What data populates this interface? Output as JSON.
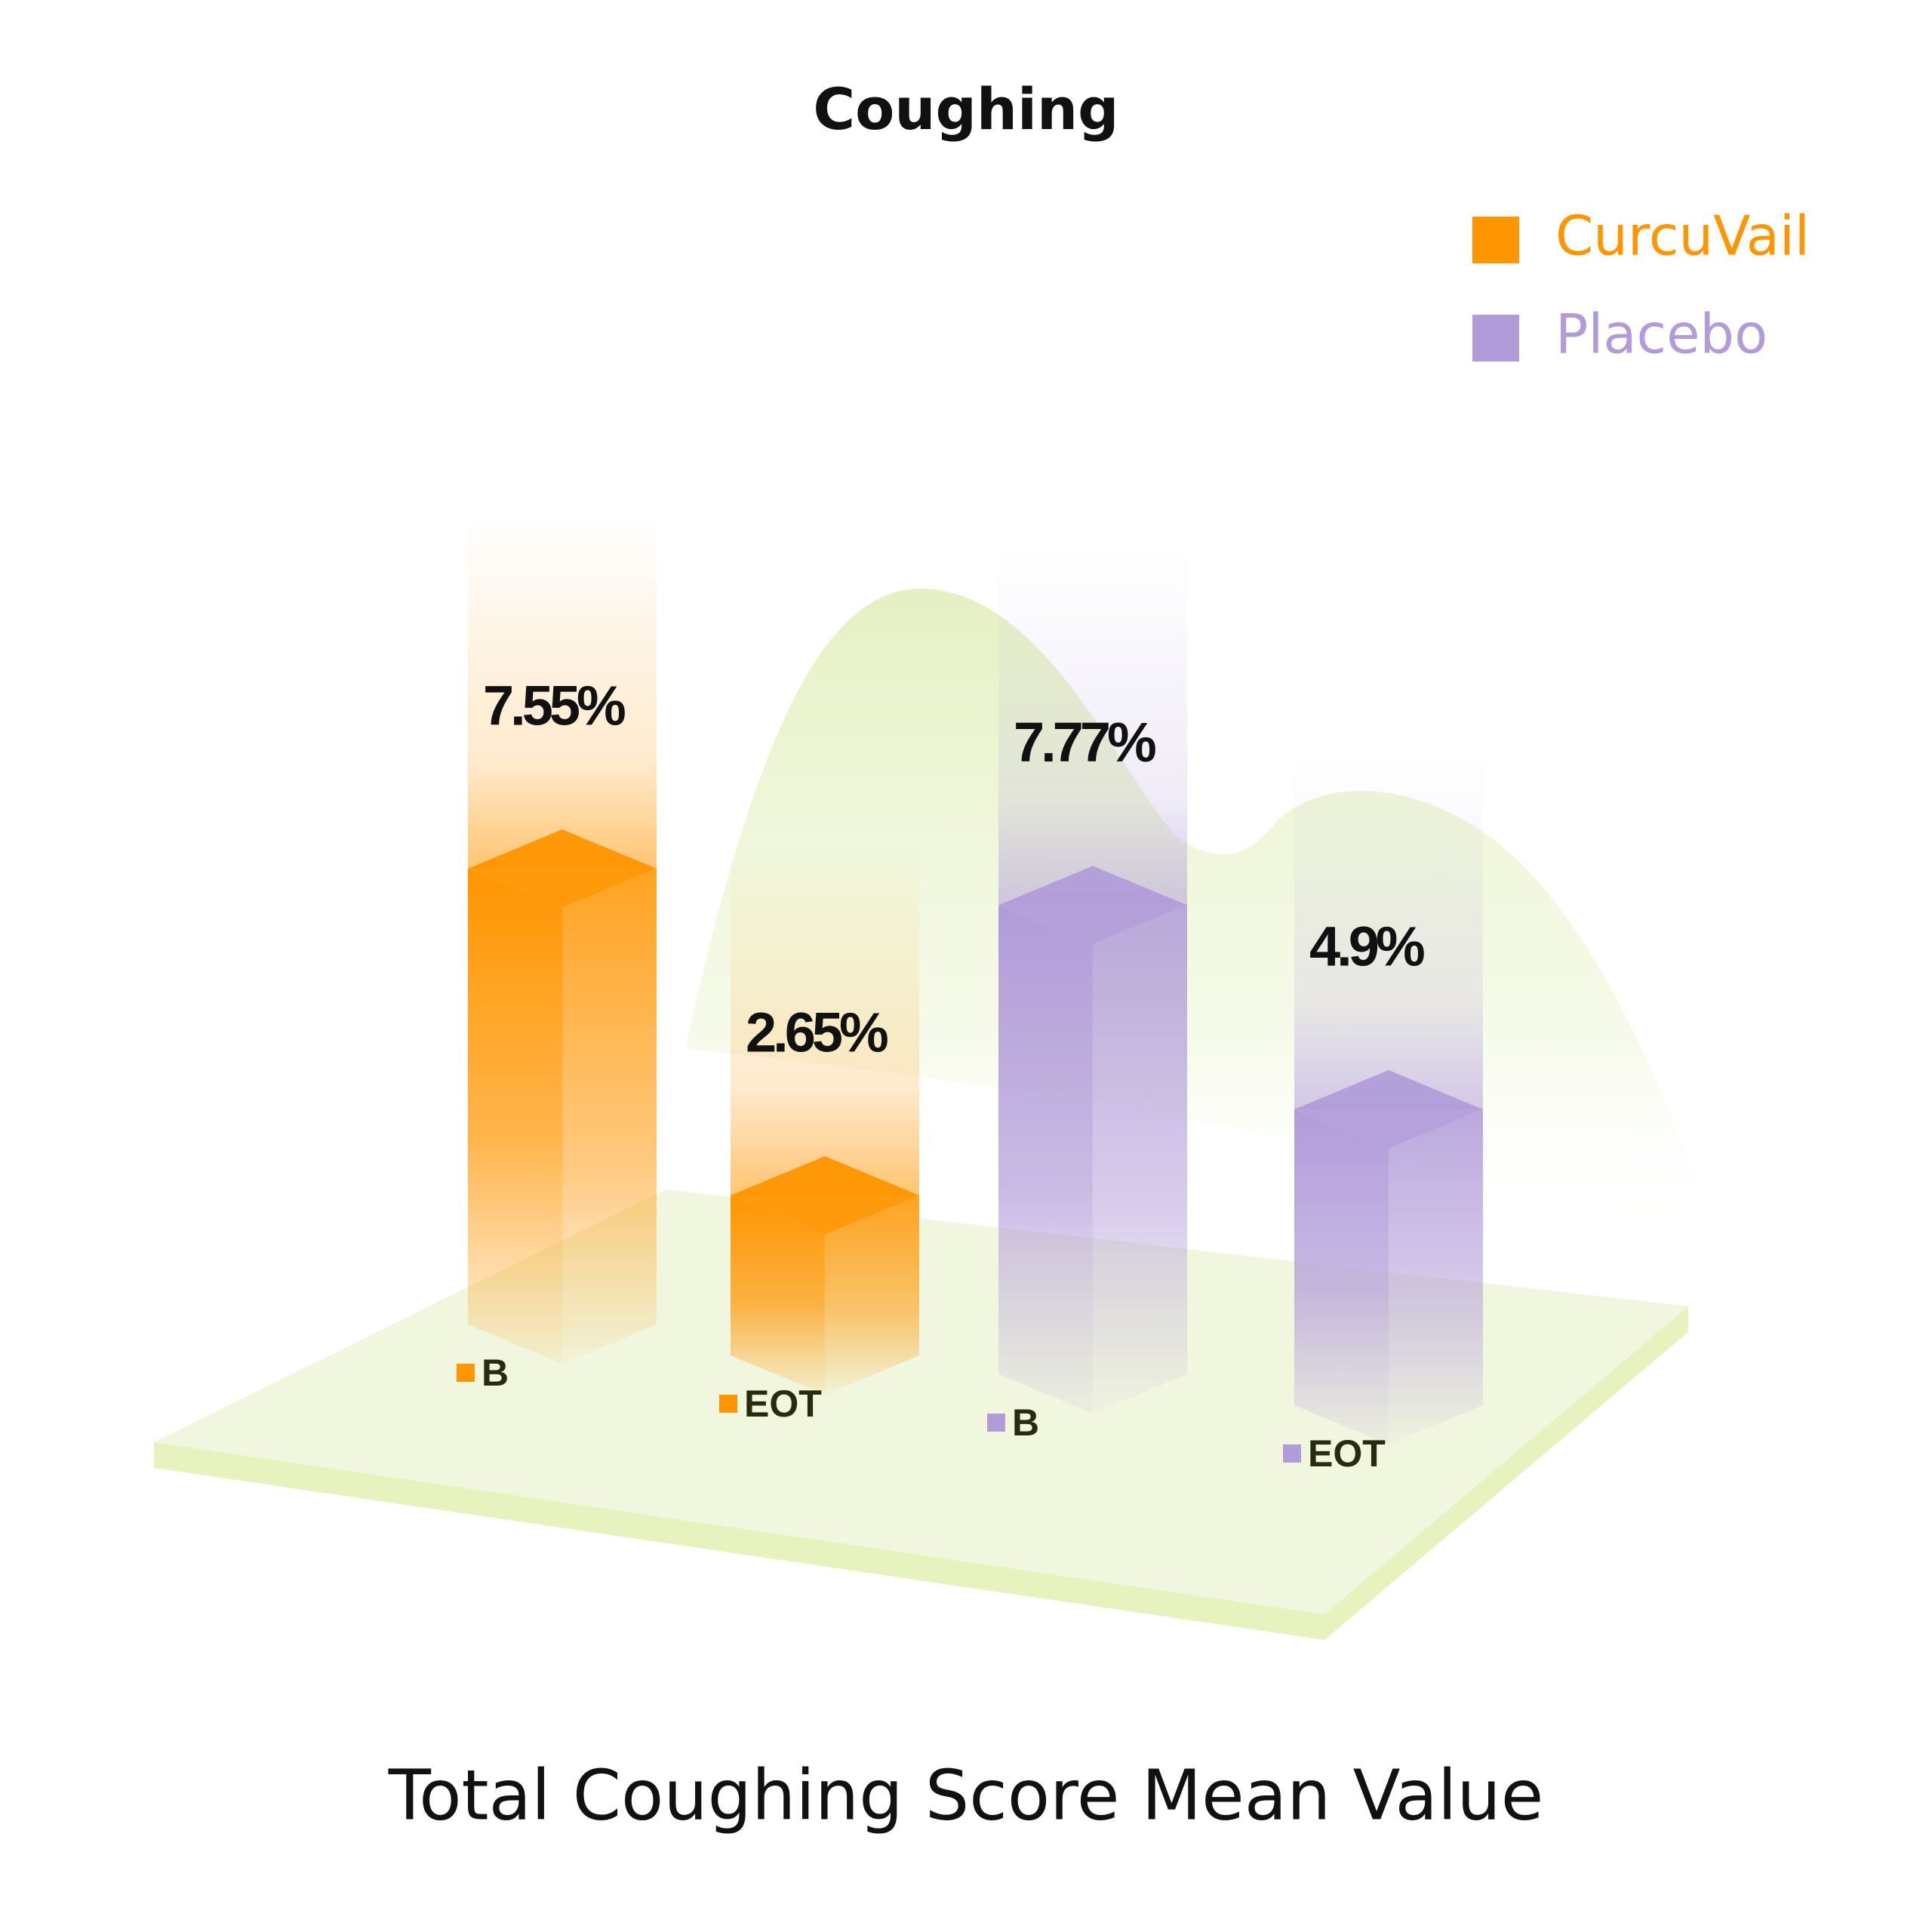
{
  "chart_data": {
    "type": "bar3d",
    "title": "Coughing",
    "x_label": "Total Coughing Score Mean Value",
    "categories": [
      "B",
      "EOT"
    ],
    "series": [
      {
        "name": "CurcuVail",
        "color": "#ff9500",
        "values": [
          7.55,
          2.65
        ],
        "value_labels": [
          "7.55%",
          "2.65%"
        ]
      },
      {
        "name": "Placebo",
        "color": "#b19cd9",
        "values": [
          7.77,
          4.9
        ],
        "value_labels": [
          "7.77%",
          "4.9%"
        ]
      }
    ],
    "legend": "top-right"
  }
}
